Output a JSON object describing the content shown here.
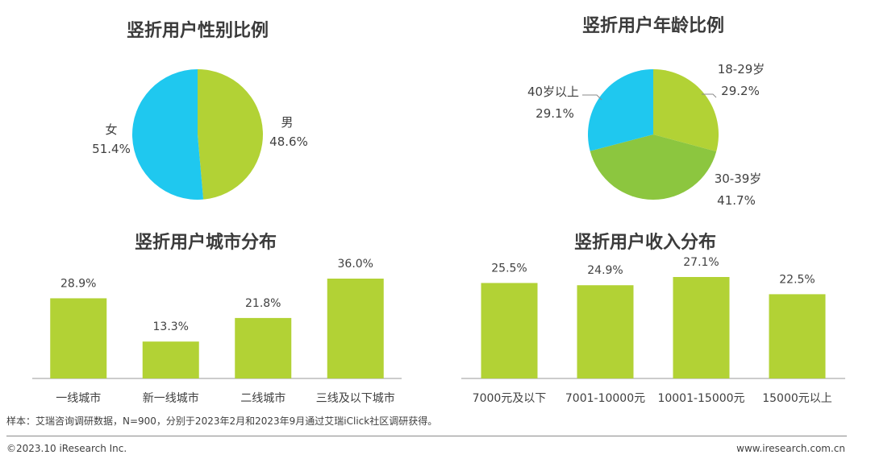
{
  "chart_data": [
    {
      "type": "pie",
      "title": "竖折用户性别比例",
      "slices": [
        {
          "label": "男",
          "value": 48.6,
          "value_label": "48.6%",
          "color": "#b2d235"
        },
        {
          "label": "女",
          "value": 51.4,
          "value_label": "51.4%",
          "color": "#1fc8ef"
        }
      ]
    },
    {
      "type": "pie",
      "title": "竖折用户年龄比例",
      "slices": [
        {
          "label": "18-29岁",
          "value": 29.2,
          "value_label": "29.2%",
          "color": "#b2d235"
        },
        {
          "label": "30-39岁",
          "value": 41.7,
          "value_label": "41.7%",
          "color": "#8cc63f"
        },
        {
          "label": "40岁以上",
          "value": 29.1,
          "value_label": "29.1%",
          "color": "#1fc8ef"
        }
      ]
    },
    {
      "type": "bar",
      "title": "竖折用户城市分布",
      "categories": [
        "一线城市",
        "新一线城市",
        "二线城市",
        "三线及以下城市"
      ],
      "values": [
        28.9,
        13.3,
        21.8,
        36.0
      ],
      "value_labels": [
        "28.9%",
        "13.3%",
        "21.8%",
        "36.0%"
      ],
      "ylim": [
        0,
        36.0
      ],
      "color": "#b2d235"
    },
    {
      "type": "bar",
      "title": "竖折用户收入分布",
      "categories": [
        "7000元及以下",
        "7001-10000元",
        "10001-15000元",
        "15000元以上"
      ],
      "values": [
        25.5,
        24.9,
        27.1,
        22.5
      ],
      "value_labels": [
        "25.5%",
        "24.9%",
        "27.1%",
        "22.5%"
      ],
      "ylim": [
        0,
        27.1
      ],
      "color": "#b2d235"
    }
  ],
  "footnote": "样本：艾瑞咨询调研数据，N=900，分别于2023年2月和2023年9月通过艾瑞iClick社区调研获得。",
  "copyright": "©2023.10 iResearch Inc.",
  "website": "www.iresearch.com.cn"
}
